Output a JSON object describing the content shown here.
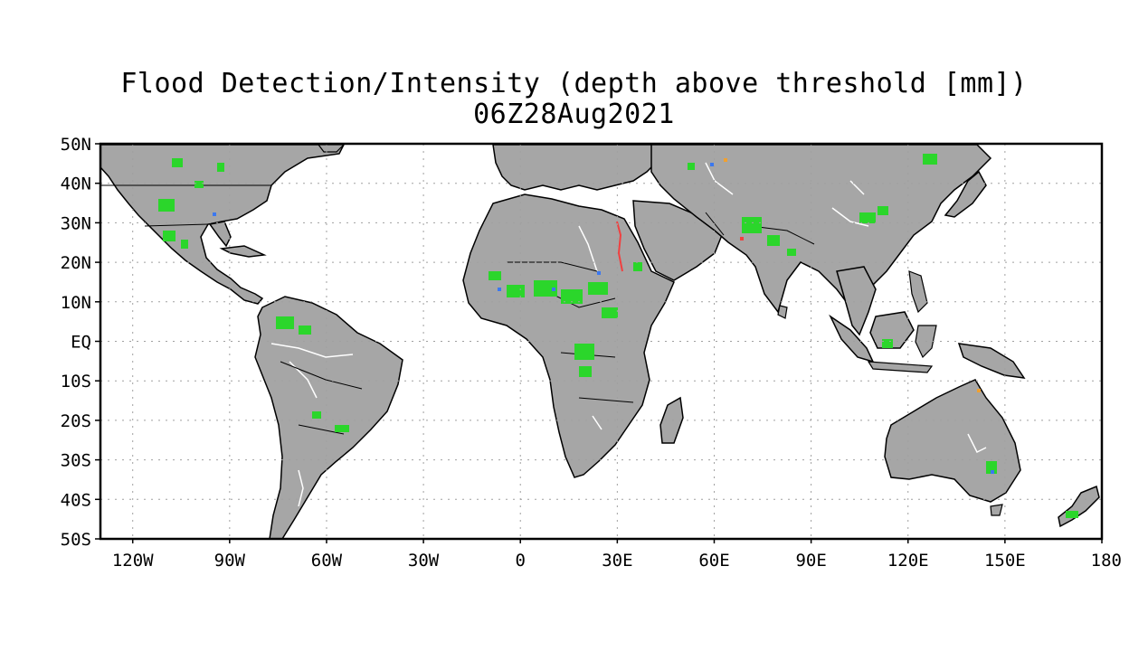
{
  "title": "Flood Detection/Intensity (depth above threshold [mm])",
  "subtitle": "06Z28Aug2021",
  "colors": {
    "land": "#a6a6a6",
    "ocean": "#ffffff",
    "border": "#000000",
    "grid": "#a0a0a0",
    "river": "#ffffff",
    "flood_low": "#2bd62b",
    "flood_mid": "#3b78f0",
    "flood_high": "#f04040",
    "flood_extreme": "#f0a030"
  },
  "axes": {
    "lon_range": [
      -130,
      180
    ],
    "lat_range": [
      -50,
      50
    ],
    "x_ticks": [
      {
        "lon": -120,
        "label": "120W"
      },
      {
        "lon": -90,
        "label": "90W"
      },
      {
        "lon": -60,
        "label": "60W"
      },
      {
        "lon": -30,
        "label": "30W"
      },
      {
        "lon": 0,
        "label": "0"
      },
      {
        "lon": 30,
        "label": "30E"
      },
      {
        "lon": 60,
        "label": "60E"
      },
      {
        "lon": 90,
        "label": "90E"
      },
      {
        "lon": 120,
        "label": "120E"
      },
      {
        "lon": 150,
        "label": "150E"
      },
      {
        "lon": 180,
        "label": "180"
      }
    ],
    "y_ticks": [
      {
        "lat": 50,
        "label": "50N"
      },
      {
        "lat": 40,
        "label": "40N"
      },
      {
        "lat": 30,
        "label": "30N"
      },
      {
        "lat": 20,
        "label": "20N"
      },
      {
        "lat": 10,
        "label": "10N"
      },
      {
        "lat": 0,
        "label": "EQ"
      },
      {
        "lat": -10,
        "label": "10S"
      },
      {
        "lat": -20,
        "label": "20S"
      },
      {
        "lat": -30,
        "label": "30S"
      },
      {
        "lat": -40,
        "label": "40S"
      },
      {
        "lat": -50,
        "label": "50S"
      }
    ]
  }
}
